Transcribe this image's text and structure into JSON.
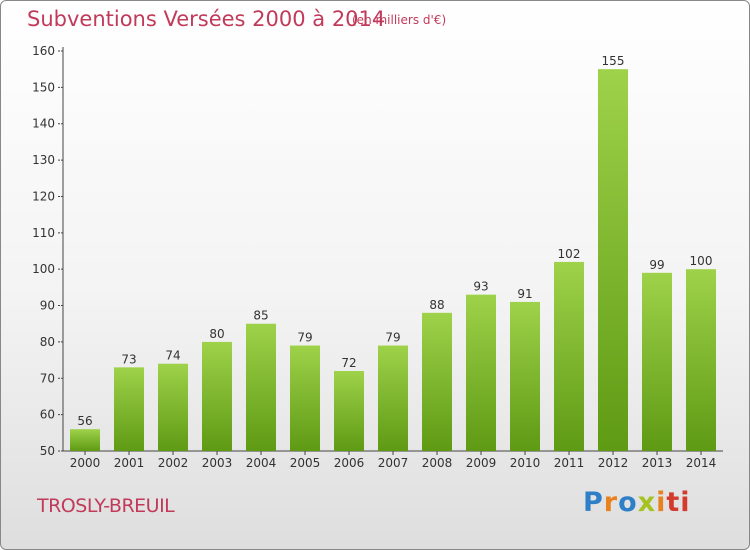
{
  "header": {
    "title": "Subventions Versées 2000 à 2014",
    "subtitle": "(en milliers d'€)"
  },
  "footer": {
    "town": "TROSLY-BREUIL",
    "logo": "Proxiti"
  },
  "colors": {
    "accent_text": "#c23a5a",
    "bar_top": "#9ed24a",
    "bar_bottom": "#5f9a14",
    "axis": "#444444",
    "grid_dash": "#bbbbbb"
  },
  "chart_data": {
    "type": "bar",
    "title": "Subventions Versées 2000 à 2014",
    "subtitle": "(en milliers d'€)",
    "categories": [
      "2000",
      "2001",
      "2002",
      "2003",
      "2004",
      "2005",
      "2006",
      "2007",
      "2008",
      "2009",
      "2010",
      "2011",
      "2012",
      "2013",
      "2014"
    ],
    "values": [
      56,
      73,
      74,
      80,
      85,
      79,
      72,
      79,
      88,
      93,
      91,
      102,
      155,
      99,
      100
    ],
    "ylim": [
      50,
      160
    ],
    "yticks": [
      50,
      60,
      70,
      80,
      90,
      100,
      110,
      120,
      130,
      140,
      150,
      160
    ],
    "xlabel": "",
    "ylabel": "",
    "grid": false,
    "legend": "none"
  }
}
